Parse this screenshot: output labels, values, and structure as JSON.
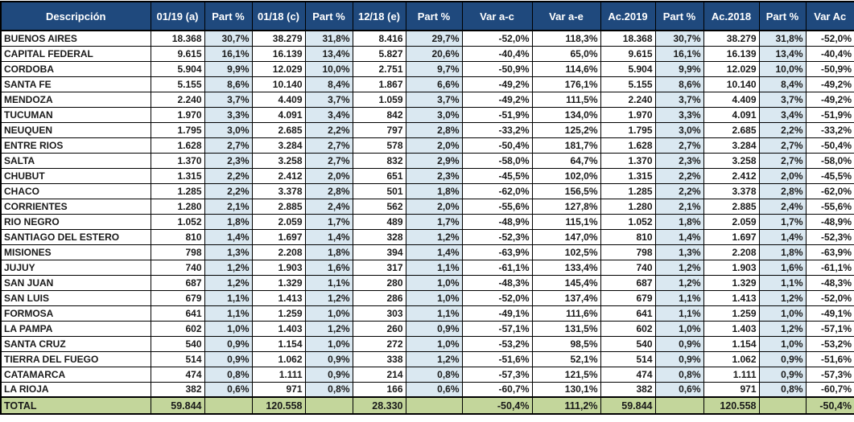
{
  "chart_data": {
    "type": "table",
    "columns": [
      "Descripción",
      "01/19 (a)",
      "Part %",
      "01/18 (c)",
      "Part %",
      "12/18 (e)",
      "Part %",
      "Var a-c",
      "Var a-e",
      "Ac.2019",
      "Part %",
      "Ac.2018",
      "Part %",
      "Var Ac"
    ],
    "rows": [
      [
        "BUENOS AIRES",
        "18.368",
        "30,7%",
        "38.279",
        "31,8%",
        "8.416",
        "29,7%",
        "-52,0%",
        "118,3%",
        "18.368",
        "30,7%",
        "38.279",
        "31,8%",
        "-52,0%"
      ],
      [
        "CAPITAL FEDERAL",
        "9.615",
        "16,1%",
        "16.139",
        "13,4%",
        "5.827",
        "20,6%",
        "-40,4%",
        "65,0%",
        "9.615",
        "16,1%",
        "16.139",
        "13,4%",
        "-40,4%"
      ],
      [
        "CORDOBA",
        "5.904",
        "9,9%",
        "12.029",
        "10,0%",
        "2.751",
        "9,7%",
        "-50,9%",
        "114,6%",
        "5.904",
        "9,9%",
        "12.029",
        "10,0%",
        "-50,9%"
      ],
      [
        "SANTA FE",
        "5.155",
        "8,6%",
        "10.140",
        "8,4%",
        "1.867",
        "6,6%",
        "-49,2%",
        "176,1%",
        "5.155",
        "8,6%",
        "10.140",
        "8,4%",
        "-49,2%"
      ],
      [
        "MENDOZA",
        "2.240",
        "3,7%",
        "4.409",
        "3,7%",
        "1.059",
        "3,7%",
        "-49,2%",
        "111,5%",
        "2.240",
        "3,7%",
        "4.409",
        "3,7%",
        "-49,2%"
      ],
      [
        "TUCUMAN",
        "1.970",
        "3,3%",
        "4.091",
        "3,4%",
        "842",
        "3,0%",
        "-51,9%",
        "134,0%",
        "1.970",
        "3,3%",
        "4.091",
        "3,4%",
        "-51,9%"
      ],
      [
        "NEUQUEN",
        "1.795",
        "3,0%",
        "2.685",
        "2,2%",
        "797",
        "2,8%",
        "-33,2%",
        "125,2%",
        "1.795",
        "3,0%",
        "2.685",
        "2,2%",
        "-33,2%"
      ],
      [
        "ENTRE RIOS",
        "1.628",
        "2,7%",
        "3.284",
        "2,7%",
        "578",
        "2,0%",
        "-50,4%",
        "181,7%",
        "1.628",
        "2,7%",
        "3.284",
        "2,7%",
        "-50,4%"
      ],
      [
        "SALTA",
        "1.370",
        "2,3%",
        "3.258",
        "2,7%",
        "832",
        "2,9%",
        "-58,0%",
        "64,7%",
        "1.370",
        "2,3%",
        "3.258",
        "2,7%",
        "-58,0%"
      ],
      [
        "CHUBUT",
        "1.315",
        "2,2%",
        "2.412",
        "2,0%",
        "651",
        "2,3%",
        "-45,5%",
        "102,0%",
        "1.315",
        "2,2%",
        "2.412",
        "2,0%",
        "-45,5%"
      ],
      [
        "CHACO",
        "1.285",
        "2,2%",
        "3.378",
        "2,8%",
        "501",
        "1,8%",
        "-62,0%",
        "156,5%",
        "1.285",
        "2,2%",
        "3.378",
        "2,8%",
        "-62,0%"
      ],
      [
        "CORRIENTES",
        "1.280",
        "2,1%",
        "2.885",
        "2,4%",
        "562",
        "2,0%",
        "-55,6%",
        "127,8%",
        "1.280",
        "2,1%",
        "2.885",
        "2,4%",
        "-55,6%"
      ],
      [
        "RIO NEGRO",
        "1.052",
        "1,8%",
        "2.059",
        "1,7%",
        "489",
        "1,7%",
        "-48,9%",
        "115,1%",
        "1.052",
        "1,8%",
        "2.059",
        "1,7%",
        "-48,9%"
      ],
      [
        "SANTIAGO DEL ESTERO",
        "810",
        "1,4%",
        "1.697",
        "1,4%",
        "328",
        "1,2%",
        "-52,3%",
        "147,0%",
        "810",
        "1,4%",
        "1.697",
        "1,4%",
        "-52,3%"
      ],
      [
        "MISIONES",
        "798",
        "1,3%",
        "2.208",
        "1,8%",
        "394",
        "1,4%",
        "-63,9%",
        "102,5%",
        "798",
        "1,3%",
        "2.208",
        "1,8%",
        "-63,9%"
      ],
      [
        "JUJUY",
        "740",
        "1,2%",
        "1.903",
        "1,6%",
        "317",
        "1,1%",
        "-61,1%",
        "133,4%",
        "740",
        "1,2%",
        "1.903",
        "1,6%",
        "-61,1%"
      ],
      [
        "SAN JUAN",
        "687",
        "1,2%",
        "1.329",
        "1,1%",
        "280",
        "1,0%",
        "-48,3%",
        "145,4%",
        "687",
        "1,2%",
        "1.329",
        "1,1%",
        "-48,3%"
      ],
      [
        "SAN LUIS",
        "679",
        "1,1%",
        "1.413",
        "1,2%",
        "286",
        "1,0%",
        "-52,0%",
        "137,4%",
        "679",
        "1,1%",
        "1.413",
        "1,2%",
        "-52,0%"
      ],
      [
        "FORMOSA",
        "641",
        "1,1%",
        "1.259",
        "1,0%",
        "303",
        "1,1%",
        "-49,1%",
        "111,6%",
        "641",
        "1,1%",
        "1.259",
        "1,0%",
        "-49,1%"
      ],
      [
        "LA PAMPA",
        "602",
        "1,0%",
        "1.403",
        "1,2%",
        "260",
        "0,9%",
        "-57,1%",
        "131,5%",
        "602",
        "1,0%",
        "1.403",
        "1,2%",
        "-57,1%"
      ],
      [
        "SANTA CRUZ",
        "540",
        "0,9%",
        "1.154",
        "1,0%",
        "272",
        "1,0%",
        "-53,2%",
        "98,5%",
        "540",
        "0,9%",
        "1.154",
        "1,0%",
        "-53,2%"
      ],
      [
        "TIERRA DEL FUEGO",
        "514",
        "0,9%",
        "1.062",
        "0,9%",
        "338",
        "1,2%",
        "-51,6%",
        "52,1%",
        "514",
        "0,9%",
        "1.062",
        "0,9%",
        "-51,6%"
      ],
      [
        "CATAMARCA",
        "474",
        "0,8%",
        "1.111",
        "0,9%",
        "214",
        "0,8%",
        "-57,3%",
        "121,5%",
        "474",
        "0,8%",
        "1.111",
        "0,9%",
        "-57,3%"
      ],
      [
        "LA RIOJA",
        "382",
        "0,6%",
        "971",
        "0,8%",
        "166",
        "0,6%",
        "-60,7%",
        "130,1%",
        "382",
        "0,6%",
        "971",
        "0,8%",
        "-60,7%"
      ]
    ],
    "total_row": [
      "TOTAL",
      "59.844",
      "",
      "120.558",
      "",
      "28.330",
      "",
      "-50,4%",
      "111,2%",
      "59.844",
      "",
      "120.558",
      "",
      "-50,4%"
    ],
    "layout_hints": {
      "part_percent_column_indices": [
        2,
        4,
        6,
        10,
        12
      ],
      "grid": true,
      "legend": "none"
    }
  },
  "colors": {
    "header_bg": "#1F497D",
    "header_text": "#FFFFFF",
    "part_column_bg": "#DAE8F1",
    "total_row_bg": "#C3D69B",
    "border": "#000000",
    "cell_text": "#1A1A1A"
  }
}
